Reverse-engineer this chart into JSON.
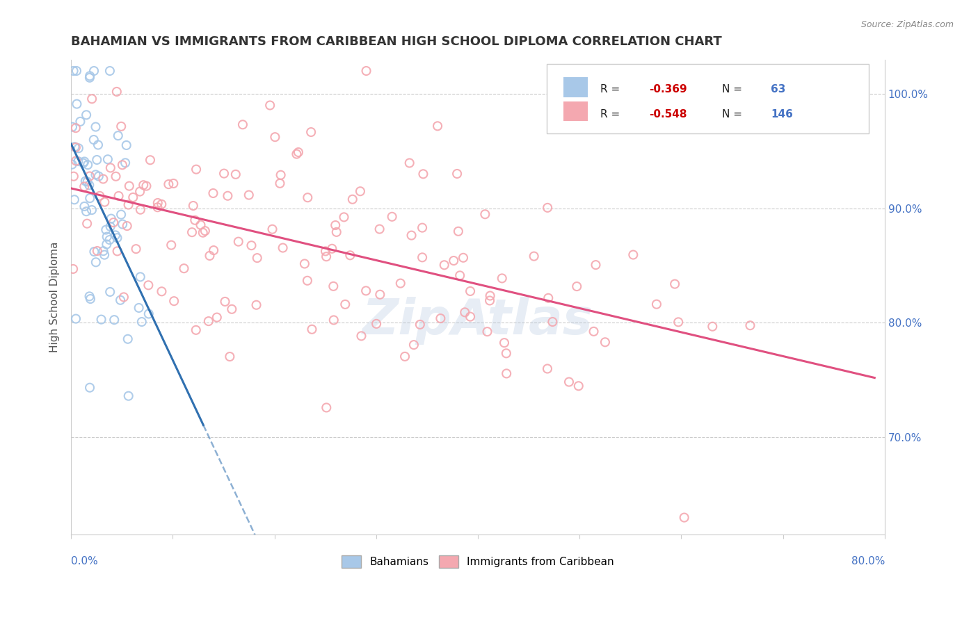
{
  "title": "BAHAMIAN VS IMMIGRANTS FROM CARIBBEAN HIGH SCHOOL DIPLOMA CORRELATION CHART",
  "source": "Source: ZipAtlas.com",
  "ylabel": "High School Diploma",
  "ytick_values": [
    0.7,
    0.8,
    0.9,
    1.0
  ],
  "xlim": [
    0.0,
    0.8
  ],
  "ylim": [
    0.615,
    1.03
  ],
  "blue_color": "#a8c8e8",
  "pink_color": "#f4a8b0",
  "blue_line_color": "#3070b0",
  "pink_line_color": "#e05080",
  "watermark": "ZipAtlas",
  "title_color": "#333333",
  "axis_label_color": "#4472C4",
  "r1": "-0.369",
  "n1": "63",
  "r2": "-0.548",
  "n2": "146"
}
